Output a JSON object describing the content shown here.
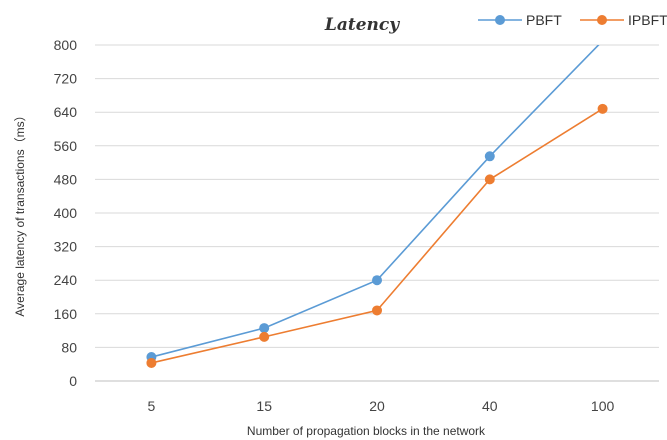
{
  "chart_data": {
    "type": "line",
    "title": "Latency",
    "xlabel": "Number of propagation blocks in the network",
    "ylabel": "Average latency of transactions（ms）",
    "categories": [
      "5",
      "15",
      "20",
      "40",
      "100"
    ],
    "ylim": [
      0,
      800
    ],
    "yticks": [
      "0",
      "80",
      "160",
      "240",
      "320",
      "400",
      "480",
      "560",
      "640",
      "720",
      "800"
    ],
    "grid": true,
    "legend_position": "top-right",
    "series": [
      {
        "name": "PBFT",
        "color": "#5b9bd5",
        "values": [
          57,
          126,
          240,
          535,
          810
        ]
      },
      {
        "name": "IPBFT",
        "color": "#ed7d31",
        "values": [
          43,
          105,
          168,
          480,
          648
        ]
      }
    ]
  }
}
